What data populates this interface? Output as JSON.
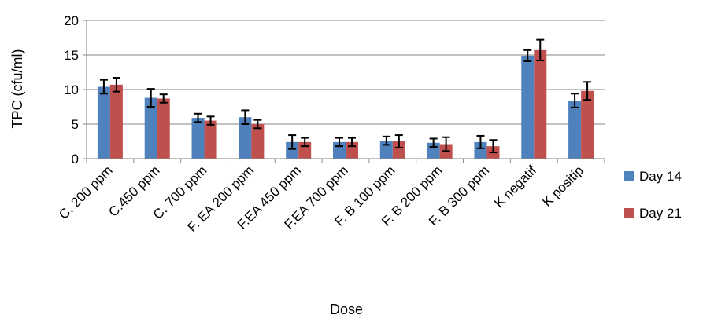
{
  "chart_data": {
    "type": "bar",
    "title": "",
    "xlabel": "Dose",
    "ylabel": "TPC (cfu/ml)",
    "ylim": [
      0,
      20
    ],
    "yticks": [
      0,
      5,
      10,
      15,
      20
    ],
    "grid": true,
    "legend_position": "right",
    "categories": [
      "C. 200 ppm",
      "C.450 ppm",
      "C. 700 ppm",
      "F. EA 200 ppm",
      "F.EA 450 ppm",
      "F.EA 700 ppm",
      "F. B 100 ppm",
      "F. B 200 ppm",
      "F. B 300 ppm",
      "K negatif",
      "K positip"
    ],
    "series": [
      {
        "name": "Day 14",
        "color": "#4F81BD",
        "values": [
          10.4,
          8.8,
          5.9,
          6.0,
          2.4,
          2.4,
          2.6,
          2.3,
          2.4,
          14.9,
          8.4
        ],
        "errors": [
          1.0,
          1.3,
          0.6,
          1.0,
          1.0,
          0.6,
          0.6,
          0.6,
          0.9,
          0.8,
          1.0
        ]
      },
      {
        "name": "Day 21",
        "color": "#C0504D",
        "values": [
          10.7,
          8.7,
          5.5,
          5.0,
          2.4,
          2.4,
          2.5,
          2.1,
          1.8,
          15.7,
          9.8
        ],
        "errors": [
          1.0,
          0.6,
          0.6,
          0.6,
          0.6,
          0.6,
          0.9,
          1.0,
          0.9,
          1.5,
          1.3
        ]
      }
    ]
  }
}
